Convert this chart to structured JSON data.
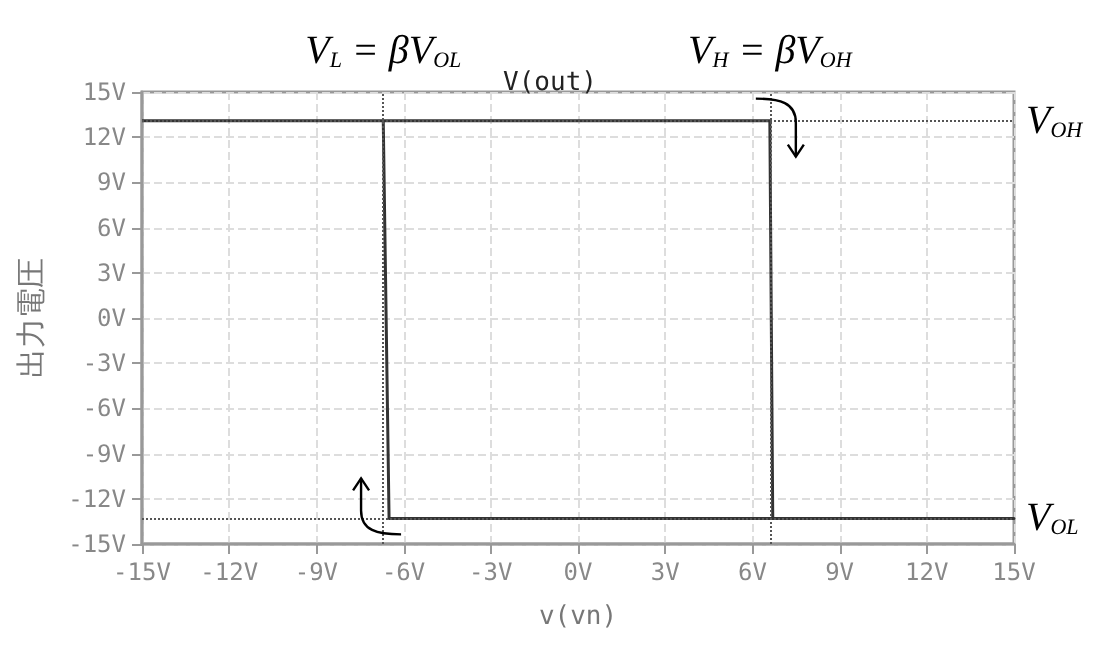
{
  "chart_data": {
    "type": "line",
    "title": "V(out)",
    "xlabel": "v(vn)",
    "ylabel": "出力電圧",
    "x": [
      -15,
      6.6,
      6.7,
      15,
      -6.5,
      -6.7
    ],
    "series": [
      {
        "color": "#333333",
        "values": [
          13.1,
          13.1,
          -13.3,
          -13.3,
          -13.3,
          13.1
        ]
      }
    ],
    "xlim": [
      -15,
      15
    ],
    "ylim": [
      -15,
      15
    ],
    "xticks": [
      {
        "value": -15,
        "label": "-15V"
      },
      {
        "value": -12,
        "label": "-12V"
      },
      {
        "value": -9,
        "label": "-9V"
      },
      {
        "value": -6,
        "label": "-6V"
      },
      {
        "value": -3,
        "label": "-3V"
      },
      {
        "value": 0,
        "label": "0V"
      },
      {
        "value": 3,
        "label": "3V"
      },
      {
        "value": 6,
        "label": "6V"
      },
      {
        "value": 9,
        "label": "9V"
      },
      {
        "value": 12,
        "label": "12V"
      },
      {
        "value": 15,
        "label": "15V"
      }
    ],
    "yticks": [
      {
        "value": -15,
        "label": "-15V"
      },
      {
        "value": -12,
        "label": "-12V"
      },
      {
        "value": -9,
        "label": "-9V"
      },
      {
        "value": -6,
        "label": "-6V"
      },
      {
        "value": -3,
        "label": "-3V"
      },
      {
        "value": 0,
        "label": "0V"
      },
      {
        "value": 3,
        "label": "3V"
      },
      {
        "value": 6,
        "label": "6V"
      },
      {
        "value": 9,
        "label": "9V"
      },
      {
        "value": 12,
        "label": "12V"
      },
      {
        "value": 15,
        "label": "15V"
      }
    ],
    "ref_lines": [
      {
        "axis": "x",
        "value": -6.7,
        "label": "V$_{L}$ = βV$_{OL}$",
        "line_style": "dotted",
        "color": "#555555"
      },
      {
        "axis": "x",
        "value": 6.6,
        "label": "V$_{H}$ = βV$_{OH}$",
        "line_style": "dotted",
        "color": "#555555"
      },
      {
        "axis": "y",
        "value": 13.1,
        "label": "V$_{OH}$",
        "line_style": "dotted",
        "color": "#555555"
      },
      {
        "axis": "y",
        "value": -13.3,
        "label": "V$_{OL}$",
        "line_style": "dotted",
        "color": "#555555"
      }
    ],
    "grid": true,
    "marker": "none",
    "line_style": "solid"
  }
}
